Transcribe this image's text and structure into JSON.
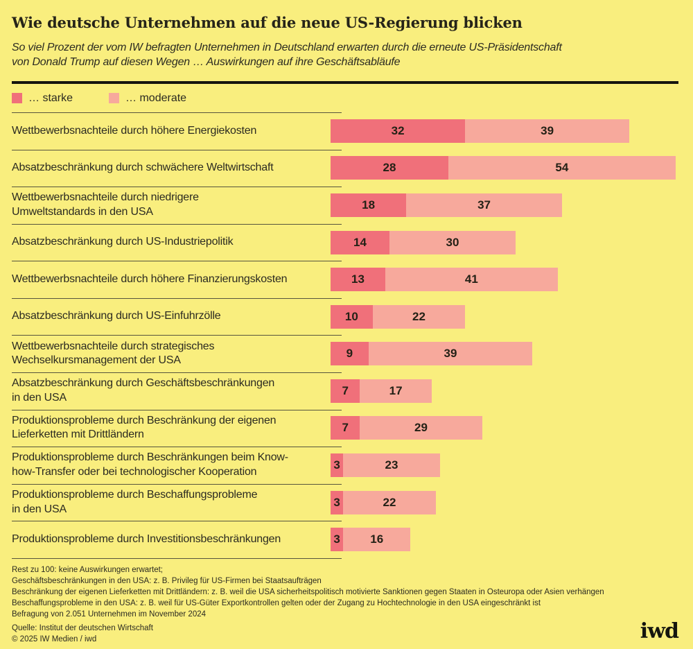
{
  "header": {
    "title": "Wie deutsche Unternehmen auf die neue US-Regierung blicken",
    "subtitle_line1": "So viel Prozent der vom IW befragten Unternehmen in Deutschland erwarten durch die erneute US-Präsidentschaft",
    "subtitle_line2": "von Donald Trump auf diesen Wegen … Auswirkungen auf ihre Geschäftsabläufe"
  },
  "legend": {
    "strong_label": "… starke",
    "moderate_label": "… moderate"
  },
  "colors": {
    "background": "#f9ee7e",
    "strong": "#f0707a",
    "moderate": "#f7a99c",
    "text": "#2b2a21",
    "separator": "#56543d",
    "rule": "#15150e"
  },
  "chart_data": {
    "type": "bar",
    "orientation": "horizontal",
    "unit": "percent of surveyed companies",
    "xlim": [
      0,
      86
    ],
    "grid": false,
    "legend_position": "top",
    "value_labels": true,
    "categories": [
      "Wettbewerbsnachteile durch höhere Energiekosten",
      "Absatzbeschränkung durch schwächere Weltwirtschaft",
      "Wettbewerbsnachteile durch niedrigere Umweltstandards in den USA",
      "Absatzbeschränkung durch US-Industriepolitik",
      "Wettbewerbsnachteile durch höhere Finanzierungskosten",
      "Absatzbeschränkung durch US-Einfuhrzölle",
      "Wettbewerbsnachteile durch strategisches Wechselkursmanagement der USA",
      "Absatzbeschränkung durch Geschäftsbeschränkungen in den USA",
      "Produktionsprobleme durch Beschränkung der eigenen Lieferketten mit Drittländern",
      "Produktionsprobleme durch Beschränkungen beim Know-how-Transfer oder bei technologischer Kooperation",
      "Produktionsprobleme durch Beschaffungsprobleme in den USA",
      "Produktionsprobleme durch Investitionsbeschränkungen"
    ],
    "label_lines": [
      [
        "Wettbewerbsnachteile durch höhere Energiekosten"
      ],
      [
        "Absatzbeschränkung durch schwächere Weltwirtschaft"
      ],
      [
        "Wettbewerbsnachteile durch niedrigere",
        "Umweltstandards in den USA"
      ],
      [
        "Absatzbeschränkung durch US-Industriepolitik"
      ],
      [
        "Wettbewerbsnachteile durch höhere Finanzierungskosten"
      ],
      [
        "Absatzbeschränkung durch US-Einfuhrzölle"
      ],
      [
        "Wettbewerbsnachteile durch strategisches",
        "Wechselkursmanagement der USA"
      ],
      [
        "Absatzbeschränkung durch Geschäftsbeschränkungen",
        "in den USA"
      ],
      [
        "Produktionsprobleme durch Beschränkung der eigenen",
        "Lieferketten mit Drittländern"
      ],
      [
        "Produktionsprobleme durch Beschränkungen beim Know-",
        "how-Transfer oder bei technologischer Kooperation"
      ],
      [
        "Produktionsprobleme durch Beschaffungsprobleme",
        "in den USA"
      ],
      [
        "Produktionsprobleme durch Investitionsbeschränkungen"
      ]
    ],
    "series": [
      {
        "name": "… starke",
        "color": "#f0707a",
        "values": [
          32,
          28,
          18,
          14,
          13,
          10,
          9,
          7,
          7,
          3,
          3,
          3
        ]
      },
      {
        "name": "… moderate",
        "color": "#f7a99c",
        "values": [
          39,
          54,
          37,
          30,
          41,
          22,
          39,
          17,
          29,
          23,
          22,
          16
        ]
      }
    ]
  },
  "footer": {
    "footnotes": [
      "Rest zu 100: keine Auswirkungen erwartet;",
      "Geschäftsbeschränkungen in den USA: z. B. Privileg für US-Firmen bei Staatsaufträgen",
      "Beschränkung der eigenen Lieferketten mit Drittländern: z. B. weil die USA sicherheitspolitisch motivierte Sanktionen gegen Staaten in Osteuropa oder Asien verhängen",
      "Beschaffungsprobleme in den USA: z. B. weil für US-Güter Exportkontrollen gelten oder der Zugang zu Hochtechnologie in den USA eingeschränkt ist",
      "Befragung von 2.051 Unternehmen im November 2024"
    ],
    "source": "Quelle: Institut der deutschen Wirtschaft",
    "copyright": "© 2025 IW Medien / iwd",
    "logo": "iwd"
  }
}
